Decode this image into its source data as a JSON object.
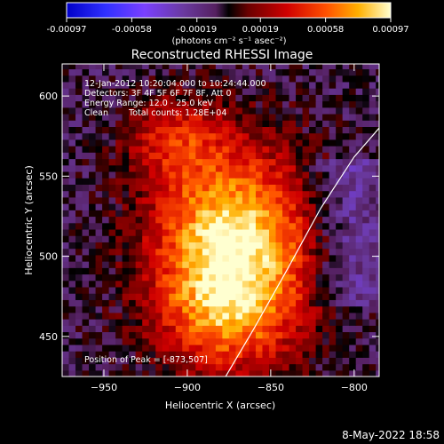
{
  "chart_data": {
    "type": "heatmap",
    "title": "Reconstructed RHESSI Image",
    "xlabel": "Heliocentric X (arcsec)",
    "ylabel": "Heliocentric Y (arcsec)",
    "xlim": [
      -975,
      -785
    ],
    "ylim": [
      425,
      620
    ],
    "x_ticks": [
      -950,
      -900,
      -850,
      -800
    ],
    "y_ticks": [
      450,
      500,
      550,
      600
    ],
    "colorbar": {
      "ticks": [
        -0.00097,
        -0.00058,
        -0.00019,
        0.00019,
        0.00058,
        0.00097
      ],
      "tick_labels": [
        "-0.00097",
        "-0.00058",
        "-0.00019",
        "0.00019",
        "0.00058",
        "0.00097"
      ],
      "units_label": "(photons cm⁻² s⁻¹ asec⁻²)",
      "range": [
        -0.00097,
        0.00097
      ]
    },
    "annotations": {
      "time_range": "12-Jan-2012 10:20:04.000 to 10:24:44.000",
      "detectors": "Detectors: 3F 4F 5F 6F 7F 8F, Att 0",
      "energy": "Energy Range: 12.0 - 25.0 keV",
      "method": "Clean",
      "counts": "Total counts: 1.28E+04",
      "peak": "Position of Peak = [-873,507]"
    },
    "peak_position": [
      -873,
      507
    ],
    "limb_curve": [
      [
        -877,
        425
      ],
      [
        -860,
        455
      ],
      [
        -840,
        492
      ],
      [
        -820,
        530
      ],
      [
        -800,
        562
      ],
      [
        -785,
        580
      ]
    ]
  },
  "footer": {
    "date": "8-May-2022 18:58"
  }
}
